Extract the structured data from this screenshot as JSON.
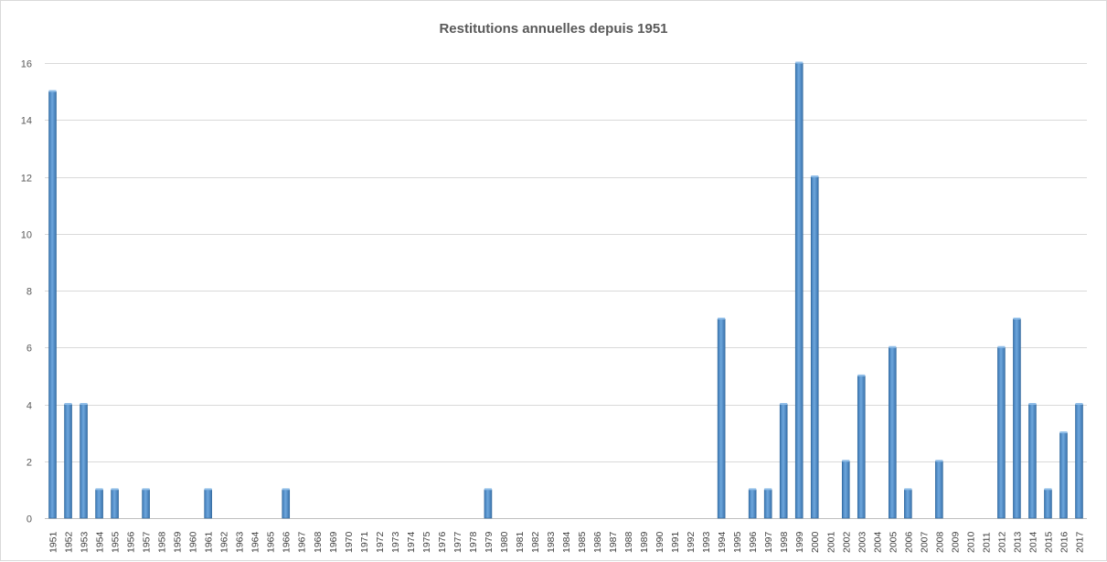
{
  "chart_data": {
    "type": "bar",
    "title": "Restitutions annuelles depuis 1951",
    "xlabel": "",
    "ylabel": "",
    "ylim": [
      0,
      16
    ],
    "yticks": [
      0,
      2,
      4,
      6,
      8,
      10,
      12,
      14,
      16
    ],
    "grid": true,
    "legend": "none",
    "bar_color": "#5b9bd5",
    "categories": [
      "1951",
      "1952",
      "1953",
      "1954",
      "1955",
      "1956",
      "1957",
      "1958",
      "1959",
      "1960",
      "1961",
      "1962",
      "1963",
      "1964",
      "1965",
      "1966",
      "1967",
      "1968",
      "1969",
      "1970",
      "1971",
      "1972",
      "1973",
      "1974",
      "1975",
      "1976",
      "1977",
      "1978",
      "1979",
      "1980",
      "1981",
      "1982",
      "1983",
      "1984",
      "1985",
      "1986",
      "1987",
      "1988",
      "1989",
      "1990",
      "1991",
      "1992",
      "1993",
      "1994",
      "1995",
      "1996",
      "1997",
      "1998",
      "1999",
      "2000",
      "2001",
      "2002",
      "2003",
      "2004",
      "2005",
      "2006",
      "2007",
      "2008",
      "2009",
      "2010",
      "2011",
      "2012",
      "2013",
      "2014",
      "2015",
      "2016",
      "2017"
    ],
    "values": [
      15,
      4,
      4,
      1,
      1,
      0,
      1,
      0,
      0,
      0,
      1,
      0,
      0,
      0,
      0,
      1,
      0,
      0,
      0,
      0,
      0,
      0,
      0,
      0,
      0,
      0,
      0,
      0,
      1,
      0,
      0,
      0,
      0,
      0,
      0,
      0,
      0,
      0,
      0,
      0,
      0,
      0,
      0,
      7,
      0,
      1,
      1,
      4,
      16,
      12,
      0,
      2,
      5,
      0,
      6,
      1,
      0,
      2,
      0,
      0,
      0,
      6,
      7,
      4,
      1,
      3,
      4
    ]
  }
}
